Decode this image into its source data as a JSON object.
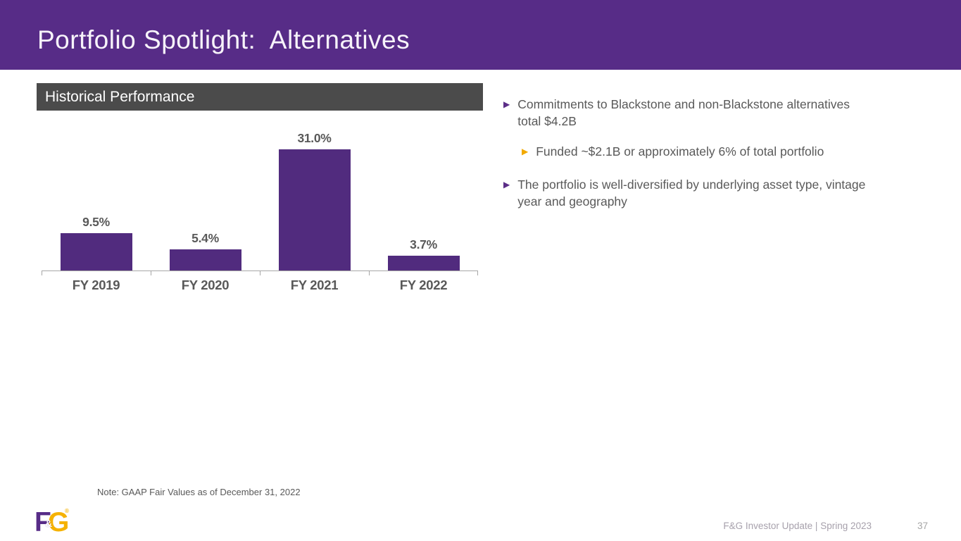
{
  "slide": {
    "title": "Portfolio Spotlight:  Alternatives",
    "note": "Note: GAAP Fair Values as of December 31, 2022",
    "footer": "F&G Investor Update | Spring 2023",
    "page_number": "37"
  },
  "section": {
    "title": "Historical Performance"
  },
  "bullets": [
    {
      "level": 1,
      "marker": "▶",
      "marker_color": "#5B2D87",
      "text": "Commitments to Blackstone and non-Blackstone alternatives\ntotal $4.2B"
    },
    {
      "level": 2,
      "marker": "▶",
      "marker_color": "#F2A900",
      "text": "Funded ~$2.1B or approximately 6% of total portfolio"
    },
    {
      "level": 1,
      "marker": "▶",
      "marker_color": "#5B2D87",
      "text": "The portfolio is well-diversified by underlying asset type, vintage\nyear and geography"
    }
  ],
  "chart_data": {
    "type": "bar",
    "title": "Historical Performance",
    "categories": [
      "FY 2019",
      "FY 2020",
      "FY 2021",
      "FY 2022"
    ],
    "values": [
      9.5,
      5.4,
      31.0,
      3.7
    ],
    "data_labels": [
      "9.5%",
      "5.4%",
      "31.0%",
      "3.7%"
    ],
    "xlabel": "",
    "ylabel": "",
    "ylim": [
      0,
      33
    ],
    "grid": false,
    "legend": "none",
    "bar_color": "#512B7E",
    "axis_color": "#A6A6A6",
    "label_color": "#595959"
  },
  "logo": {
    "letter_f": "F",
    "amp": "&",
    "letter_g": "G",
    "reg": "®"
  }
}
